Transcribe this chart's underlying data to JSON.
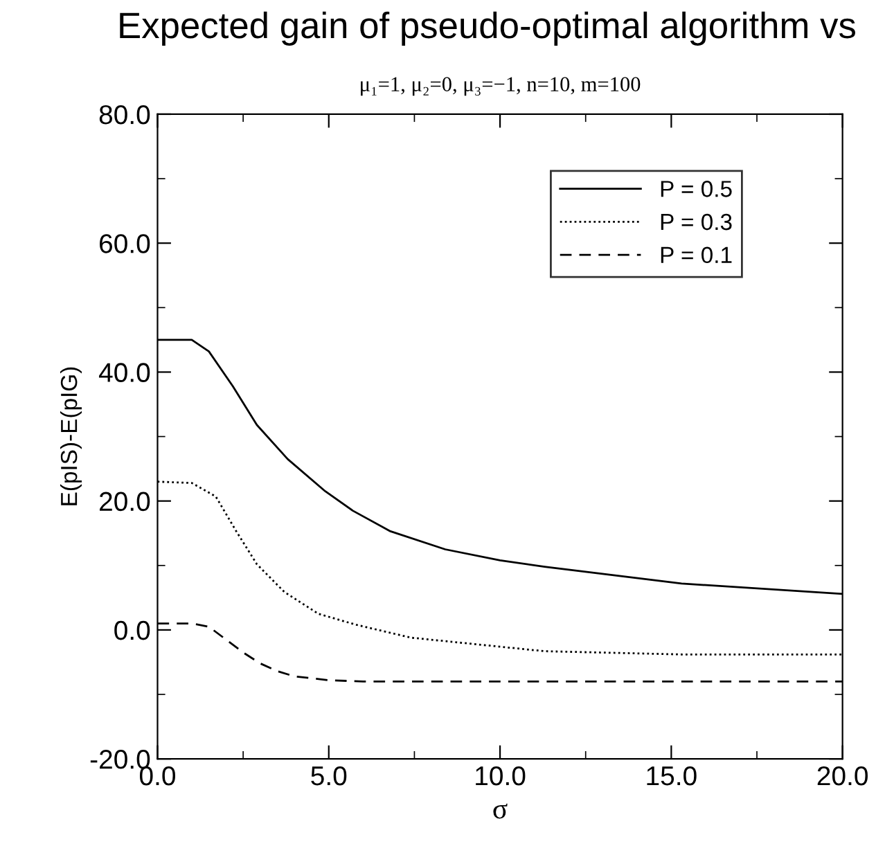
{
  "chart_data": {
    "type": "line",
    "title": "Expected gain of pseudo-optimal algorithm vs",
    "subtitle": "μ₁=1, μ₂=0, μ₃=−1, n=10, m=100",
    "xlabel": "σ",
    "ylabel": "E(pIS)-E(pIG)",
    "xlim": [
      0,
      20
    ],
    "ylim": [
      -20,
      80
    ],
    "xticks": [
      {
        "value": 0,
        "label": "0.0"
      },
      {
        "value": 2.5,
        "label": null
      },
      {
        "value": 5,
        "label": "5.0"
      },
      {
        "value": 7.5,
        "label": null
      },
      {
        "value": 10,
        "label": "10.0"
      },
      {
        "value": 12.5,
        "label": null
      },
      {
        "value": 15,
        "label": "15.0"
      },
      {
        "value": 17.5,
        "label": null
      },
      {
        "value": 20,
        "label": "20.0"
      }
    ],
    "yticks": [
      {
        "value": -20,
        "label": "-20.0"
      },
      {
        "value": -10,
        "label": null
      },
      {
        "value": 0,
        "label": "0.0"
      },
      {
        "value": 10,
        "label": null
      },
      {
        "value": 20,
        "label": "20.0"
      },
      {
        "value": 30,
        "label": null
      },
      {
        "value": 40,
        "label": "40.0"
      },
      {
        "value": 50,
        "label": null
      },
      {
        "value": 60,
        "label": "60.0"
      },
      {
        "value": 70,
        "label": null
      },
      {
        "value": 80,
        "label": "80.0"
      }
    ],
    "grid": false,
    "legend": "top right",
    "marker": "none",
    "series": [
      {
        "name": "P = 0.5",
        "color": "#000000",
        "line_style": "solid",
        "x": [
          0,
          1.0,
          1.5,
          2.2,
          2.9,
          3.8,
          4.9,
          5.7,
          6.8,
          8.4,
          10.0,
          11.3,
          15.3,
          20
        ],
        "values": [
          45,
          45,
          43.2,
          37.8,
          31.8,
          26.5,
          21.5,
          18.5,
          15.3,
          12.5,
          10.8,
          9.8,
          7.2,
          5.6
        ]
      },
      {
        "name": "P = 0.3",
        "color": "#000000",
        "line_style": "dotted",
        "x": [
          0,
          1.0,
          1.7,
          2.3,
          2.9,
          3.7,
          4.7,
          5.8,
          7.4,
          11.3,
          15.3,
          20
        ],
        "values": [
          23,
          22.8,
          20.7,
          15.3,
          10.2,
          5.9,
          2.5,
          0.8,
          -1.2,
          -3.3,
          -3.8,
          -3.8
        ]
      },
      {
        "name": "P = 0.1",
        "color": "#000000",
        "line_style": "dashed",
        "x": [
          0,
          1.0,
          1.5,
          2.0,
          2.5,
          3.0,
          3.5,
          4.0,
          5.0,
          6.0,
          20
        ],
        "values": [
          1,
          1.0,
          0.5,
          -1.5,
          -3.5,
          -5.2,
          -6.4,
          -7.2,
          -7.8,
          -8.0,
          -8.0
        ]
      }
    ]
  }
}
